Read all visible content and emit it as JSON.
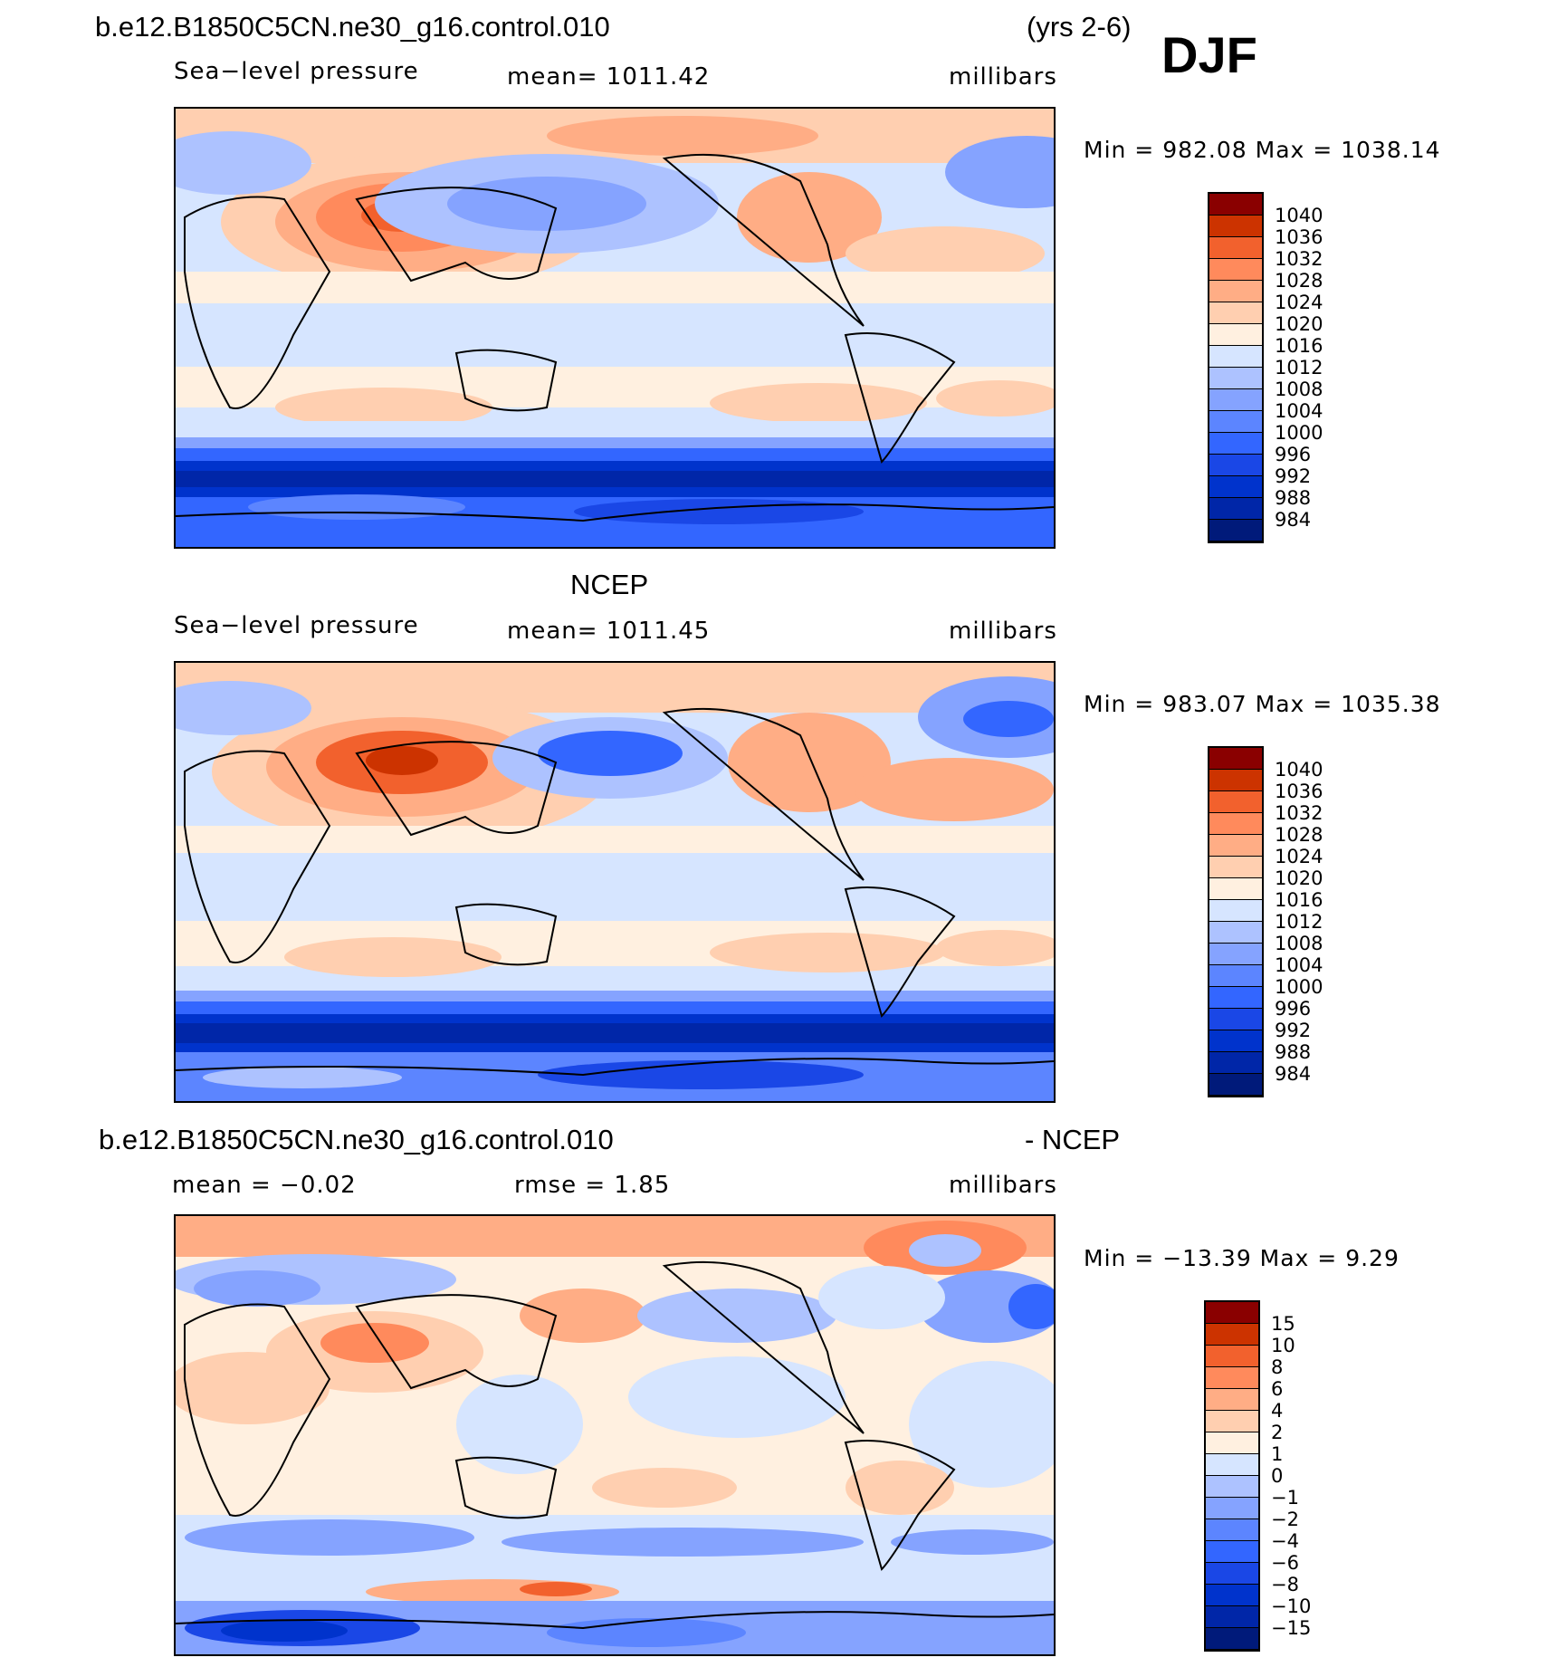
{
  "header": {
    "case_name": "b.e12.B1850C5CN.ne30_g16.control.010",
    "years": "(yrs 2-6)",
    "season": "DJF"
  },
  "panels": [
    {
      "id": "model",
      "title": "",
      "variable": "Sea−level pressure",
      "mean": "mean=  1011.42",
      "units": "millibars",
      "minmax": "Min  =  982.08  Max  =  1038.14",
      "colorbar_labels": [
        "1040",
        "1036",
        "1032",
        "1028",
        "1024",
        "1020",
        "1016",
        "1012",
        "1008",
        "1004",
        "1000",
        "996",
        "992",
        "988",
        "984"
      ]
    },
    {
      "id": "ncep",
      "title": "NCEP",
      "variable": "Sea−level pressure",
      "mean": "mean=  1011.45",
      "units": "millibars",
      "minmax": "Min  =  983.07  Max  =  1035.38",
      "colorbar_labels": [
        "1040",
        "1036",
        "1032",
        "1028",
        "1024",
        "1020",
        "1016",
        "1012",
        "1008",
        "1004",
        "1000",
        "996",
        "992",
        "988",
        "984"
      ]
    },
    {
      "id": "diff",
      "title_left": "b.e12.B1850C5CN.ne30_g16.control.010",
      "title_right": "- NCEP",
      "mean": "mean =    −0.02",
      "rmse": "rmse =     1.85",
      "units": "millibars",
      "minmax": "Min  =  −13.39  Max  =     9.29",
      "colorbar_labels": [
        "15",
        "10",
        "8",
        "6",
        "4",
        "2",
        "1",
        "0",
        "−1",
        "−2",
        "−4",
        "−6",
        "−8",
        "−10",
        "−15"
      ]
    }
  ],
  "colors": {
    "scale": [
      "#001a7a",
      "#0026a8",
      "#0033cc",
      "#1a47e6",
      "#3366ff",
      "#5c85ff",
      "#85a3ff",
      "#adc2ff",
      "#d6e5ff",
      "#fff0e0",
      "#ffcfb0",
      "#ffad85",
      "#ff8a5c",
      "#f2612d",
      "#cc3300",
      "#8a0000"
    ]
  }
}
